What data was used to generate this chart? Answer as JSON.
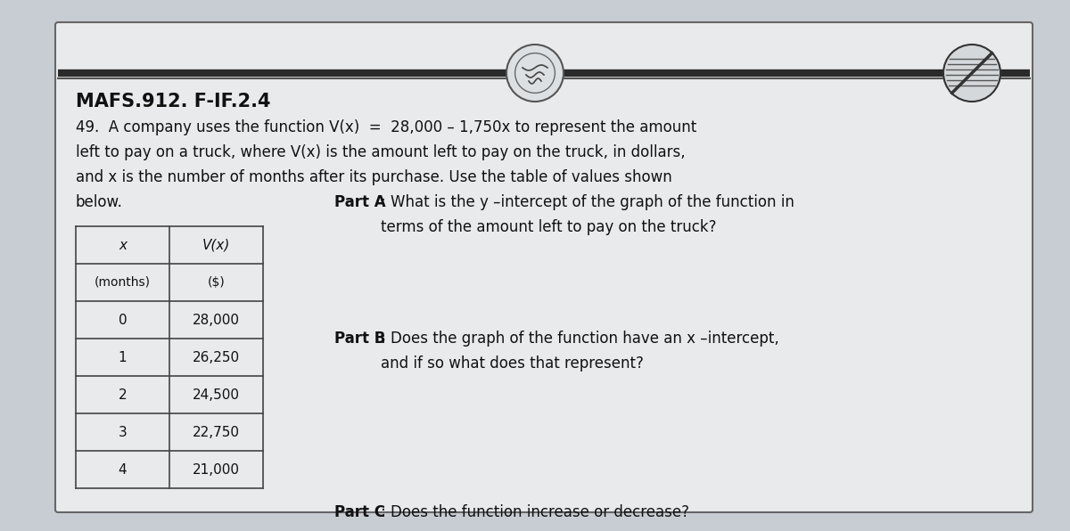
{
  "bg_color": "#c8cdd4",
  "card_color": "#e8eaec",
  "card_edge_color": "#666666",
  "header_bar_color": "#2a2a2a",
  "title": "MAFS.912. F-IF.2.4",
  "line1": "49.  A company uses the function V(x)  =  28,000 – 1,750x to represent the amount",
  "line2": "left to pay on a truck, where V(x) is the amount left to pay on the truck, in dollars,",
  "line3": "and x is the number of months after its purchase. Use the table of values shown",
  "line4_left": "below.",
  "part_a_label": "Part A",
  "part_a_colon": ":",
  "part_a_text1": " What is the y –intercept of the graph of the function in",
  "part_a_text2": "terms of the amount left to pay on the truck?",
  "part_b_label": "Part B",
  "part_b_colon": ":",
  "part_b_text1": " Does the graph of the function have an x –intercept,",
  "part_b_text2": "and if so what does that represent?",
  "part_c_label": "Part C",
  "part_c_colon": ":",
  "part_c_text": " Does the function increase or decrease?",
  "table_x_header": "x",
  "table_vx_header": "V(x)",
  "table_months": "(months)",
  "table_dollars": "($)",
  "table_x": [
    "0",
    "1",
    "2",
    "3",
    "4"
  ],
  "table_vx": [
    "28,000",
    "26,250",
    "24,500",
    "22,750",
    "21,000"
  ],
  "fs_title": 15,
  "fs_body": 12,
  "fs_table": 11,
  "tc": "#111111"
}
